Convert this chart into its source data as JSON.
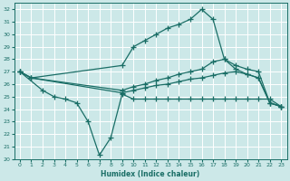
{
  "title": "",
  "xlabel": "Humidex (Indice chaleur)",
  "xlim": [
    -0.5,
    23.5
  ],
  "ylim": [
    20,
    32.5
  ],
  "yticks": [
    20,
    21,
    22,
    23,
    24,
    25,
    26,
    27,
    28,
    29,
    30,
    31,
    32
  ],
  "xticks": [
    0,
    1,
    2,
    3,
    4,
    5,
    6,
    7,
    8,
    9,
    10,
    11,
    12,
    13,
    14,
    15,
    16,
    17,
    18,
    19,
    20,
    21,
    22,
    23
  ],
  "bg_color": "#cce8e8",
  "grid_color": "#ffffff",
  "line_color": "#1a6e66",
  "line_width": 0.9,
  "marker": "+",
  "marker_size": 4,
  "series": [
    {
      "x": [
        0,
        1,
        9,
        10,
        11,
        12,
        13,
        14,
        15,
        16,
        17,
        18,
        19,
        20,
        21,
        22,
        23
      ],
      "y": [
        27.0,
        26.5,
        27.5,
        29.0,
        29.5,
        30.0,
        30.5,
        30.8,
        31.2,
        32.0,
        31.2,
        28.0,
        27.2,
        26.8,
        26.5,
        24.5,
        24.2
      ]
    },
    {
      "x": [
        0,
        1,
        9,
        10,
        11,
        12,
        13,
        14,
        15,
        16,
        17,
        18,
        19,
        20,
        21,
        22,
        23
      ],
      "y": [
        27.0,
        26.5,
        25.5,
        25.8,
        26.0,
        26.3,
        26.5,
        26.8,
        27.0,
        27.2,
        27.8,
        28.0,
        27.5,
        27.2,
        27.0,
        24.5,
        24.2
      ]
    },
    {
      "x": [
        0,
        1,
        9,
        10,
        11,
        12,
        13,
        14,
        15,
        16,
        17,
        18,
        19,
        20,
        21,
        22,
        23
      ],
      "y": [
        27.0,
        26.5,
        25.3,
        25.5,
        25.7,
        25.9,
        26.0,
        26.2,
        26.4,
        26.5,
        26.7,
        26.9,
        27.0,
        26.8,
        26.5,
        24.5,
        24.2
      ]
    },
    {
      "x": [
        0,
        2,
        3,
        4,
        5,
        6,
        7,
        8,
        9,
        10,
        11,
        12,
        13,
        14,
        15,
        16,
        17,
        18,
        19,
        20,
        21,
        22,
        23
      ],
      "y": [
        27.0,
        25.5,
        25.0,
        24.8,
        24.5,
        23.0,
        20.3,
        21.7,
        25.2,
        24.8,
        24.8,
        24.8,
        24.8,
        24.8,
        24.8,
        24.8,
        24.8,
        24.8,
        24.8,
        24.8,
        24.8,
        24.8,
        24.2
      ]
    }
  ]
}
